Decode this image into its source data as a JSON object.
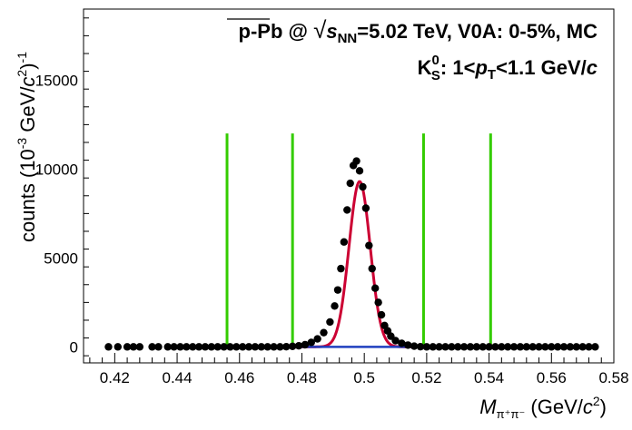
{
  "title_line1": {
    "prefix": "p-Pb @ ",
    "sqrt_symbol": "√",
    "s": "s",
    "s_sub": "NN",
    "rest": "=5.02 TeV, V0A: 0-5%, MC"
  },
  "title_line2": {
    "k": "K",
    "k_sup": "0",
    "k_sub": "S",
    "colon": ": 1<",
    "p": "p",
    "p_sub": "T",
    "rest": "<1.1 GeV/",
    "c": "c"
  },
  "xlabel": {
    "m": "M",
    "sub": "π⁺π⁻",
    "rest": " (GeV/",
    "c": "c",
    "sup": "2",
    "close": ")"
  },
  "ylabel": {
    "pre": "counts (10",
    "sup1": "-3",
    "mid": " GeV/",
    "c": "c",
    "sup2": "2",
    "close": ")",
    "sup3": "-1"
  },
  "colors": {
    "points": "#000000",
    "fit": "#cc0033",
    "background": "#1f3fbf",
    "markers": "#33cc00"
  },
  "chart_data": {
    "type": "scatter",
    "xlim": [
      0.41,
      0.58
    ],
    "ylim": [
      -900,
      19000
    ],
    "x_ticks": [
      "0.42",
      "0.44",
      "0.46",
      "0.48",
      "0.5",
      "0.52",
      "0.54",
      "0.56",
      "0.58"
    ],
    "y_ticks": [
      "0",
      "5000",
      "10000",
      "15000"
    ],
    "series": [
      {
        "kind": "points",
        "x": [
          0.418,
          0.421,
          0.424,
          0.426,
          0.428,
          0.432,
          0.434,
          0.437,
          0.439,
          0.441,
          0.443,
          0.445,
          0.447,
          0.449,
          0.451,
          0.453,
          0.455,
          0.457,
          0.459,
          0.461,
          0.463,
          0.465,
          0.467,
          0.469,
          0.471,
          0.473,
          0.475,
          0.477,
          0.479,
          0.481,
          0.483,
          0.485,
          0.487,
          0.489,
          0.4905,
          0.4915,
          0.4925,
          0.4935,
          0.4945,
          0.4955,
          0.4965,
          0.4975,
          0.4985,
          0.4995,
          0.5005,
          0.5015,
          0.5025,
          0.5035,
          0.5045,
          0.5055,
          0.5065,
          0.5075,
          0.5085,
          0.51,
          0.512,
          0.514,
          0.516,
          0.518,
          0.52,
          0.522,
          0.524,
          0.526,
          0.528,
          0.53,
          0.532,
          0.534,
          0.536,
          0.538,
          0.54,
          0.542,
          0.544,
          0.546,
          0.548,
          0.55,
          0.552,
          0.554,
          0.556,
          0.558,
          0.56,
          0.562,
          0.564,
          0.566,
          0.568,
          0.57,
          0.572,
          0.574
        ],
        "y": [
          0,
          0,
          0,
          0,
          0,
          0,
          0,
          0,
          0,
          0,
          0,
          0,
          0,
          0,
          0,
          0,
          0,
          0,
          0,
          0,
          0,
          0,
          0,
          0,
          0,
          0,
          10,
          30,
          60,
          120,
          250,
          450,
          800,
          1400,
          2300,
          3200,
          4400,
          5900,
          7700,
          9200,
          10200,
          10450,
          9900,
          9000,
          7800,
          5700,
          4400,
          3300,
          2500,
          1800,
          1200,
          900,
          600,
          350,
          200,
          100,
          40,
          10,
          0,
          0,
          0,
          0,
          0,
          0,
          0,
          0,
          0,
          0,
          0,
          0,
          0,
          0,
          0,
          0,
          0,
          0,
          0,
          0,
          0,
          0,
          0,
          0,
          0,
          0,
          0,
          0
        ]
      },
      {
        "kind": "fit",
        "name": "",
        "mean": 0.4985,
        "sigma": 0.0034,
        "amplitude": 9300,
        "x_range": [
          0.4392,
          0.5575
        ]
      },
      {
        "kind": "background",
        "name": "",
        "value": 0,
        "x_range": [
          0.4392,
          0.5575
        ]
      },
      {
        "kind": "vertical_lines",
        "name": "",
        "x": [
          0.456,
          0.477,
          0.519,
          0.5405
        ],
        "y_range": [
          0,
          12000
        ]
      }
    ]
  }
}
